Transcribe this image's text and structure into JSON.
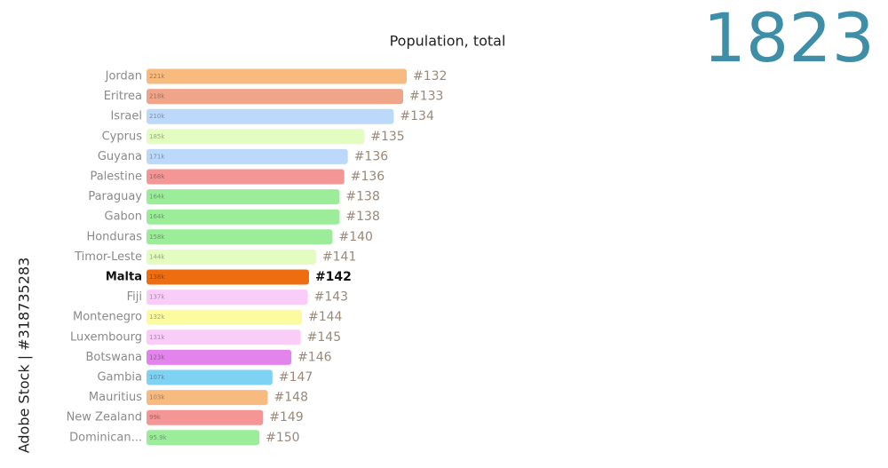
{
  "chart_data": {
    "type": "bar",
    "orientation": "horizontal",
    "title": "Population, total",
    "year": "1823",
    "watermark": "Adobe Stock | #318735283",
    "highlight": "Malta",
    "categories": [
      "Jordan",
      "Eritrea",
      "Israel",
      "Cyprus",
      "Guyana",
      "Palestine",
      "Paraguay",
      "Gabon",
      "Honduras",
      "Timor-Leste",
      "Malta",
      "Fiji",
      "Montenegro",
      "Luxembourg",
      "Botswana",
      "Gambia",
      "Mauritius",
      "New Zealand",
      "Dominican..."
    ],
    "values": [
      221,
      218,
      210,
      185,
      171,
      168,
      164,
      164,
      158,
      144,
      138,
      137,
      132,
      131,
      123,
      107,
      103,
      99,
      95.9
    ],
    "value_labels": [
      "221k",
      "218k",
      "210k",
      "185k",
      "171k",
      "168k",
      "164k",
      "164k",
      "158k",
      "144k",
      "138k",
      "137k",
      "132k",
      "131k",
      "123k",
      "107k",
      "103k",
      "99k",
      "95.9k"
    ],
    "ranks": [
      "#132",
      "#133",
      "#134",
      "#135",
      "#136",
      "#136",
      "#138",
      "#138",
      "#140",
      "#141",
      "#142",
      "#143",
      "#144",
      "#145",
      "#146",
      "#147",
      "#148",
      "#149",
      "#150"
    ],
    "colors": [
      "#f7bb80",
      "#f0a58a",
      "#bcd8fb",
      "#e3fcc0",
      "#bcd8fb",
      "#f49696",
      "#9ced9a",
      "#9ced9a",
      "#9ced9a",
      "#e3fcc0",
      "#ee6d10",
      "#f9cdf8",
      "#fbfba0",
      "#f9cdf8",
      "#e384ec",
      "#7ed2f4",
      "#f7bb80",
      "#f49696",
      "#9ced9a"
    ]
  }
}
